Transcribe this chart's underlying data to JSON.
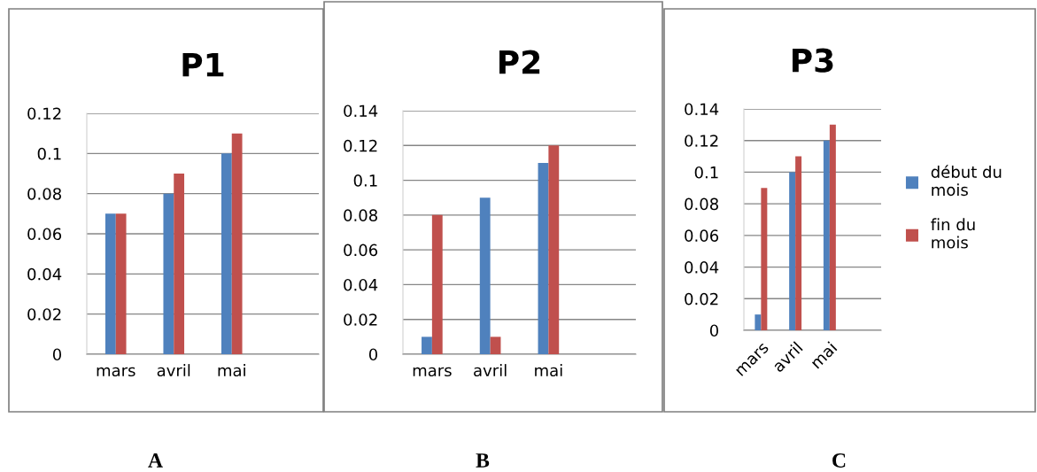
{
  "chart_data": [
    {
      "type": "bar",
      "title": "P1",
      "categories": [
        "mars",
        "avril",
        "mai",
        null
      ],
      "ylim": [
        0,
        0.12
      ],
      "yticks": [
        0,
        0.02,
        0.04,
        0.06,
        0.08,
        0.1,
        0.12
      ],
      "grid": "y",
      "legend": false,
      "annotations": [
        "A"
      ],
      "series": [
        {
          "color": "#4f81bd",
          "values": [
            0.07,
            0.08,
            0.1,
            null
          ]
        },
        {
          "color": "#c0504d",
          "values": [
            0.07,
            0.09,
            0.11,
            null
          ]
        }
      ]
    },
    {
      "type": "bar",
      "title": "P2",
      "categories": [
        "mars",
        "avril",
        "mai",
        null
      ],
      "ylim": [
        0,
        0.14
      ],
      "yticks": [
        0,
        0.02,
        0.04,
        0.06,
        0.08,
        0.1,
        0.12,
        0.14
      ],
      "grid": "y",
      "legend": false,
      "annotations": [
        "B"
      ],
      "series": [
        {
          "color": "#4f81bd",
          "values": [
            0.01,
            0.09,
            0.11,
            null
          ]
        },
        {
          "color": "#c0504d",
          "values": [
            0.08,
            0.01,
            0.12,
            null
          ]
        }
      ]
    },
    {
      "type": "bar",
      "title": "P3",
      "categories": [
        "mars",
        "avril",
        "mai",
        null
      ],
      "ylim": [
        0,
        0.14
      ],
      "yticks": [
        0,
        0.02,
        0.04,
        0.06,
        0.08,
        0.1,
        0.12,
        0.14
      ],
      "grid": "y",
      "legend": "right",
      "annotations": [
        "C"
      ],
      "series": [
        {
          "name": "début du mois",
          "color": "#4f81bd",
          "values": [
            0.01,
            0.1,
            0.12,
            null
          ]
        },
        {
          "name": "fin du mois",
          "color": "#c0504d",
          "values": [
            0.09,
            0.11,
            0.13,
            null
          ]
        }
      ]
    }
  ]
}
